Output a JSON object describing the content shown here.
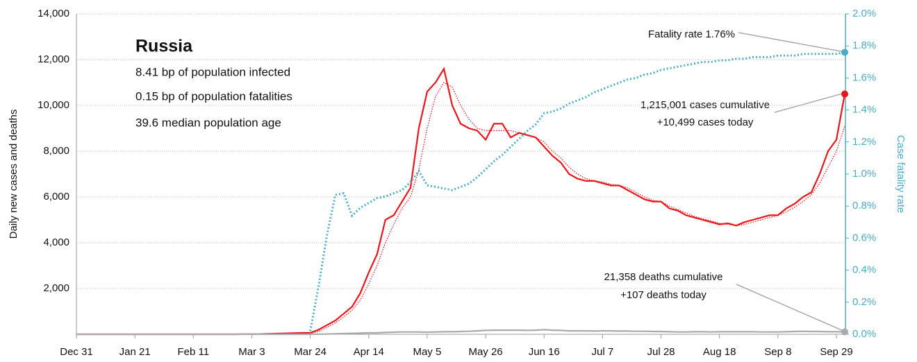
{
  "chart_data": {
    "type": "line",
    "info": {
      "title": "Russia",
      "lines": [
        "8.41 bp of population infected",
        "0.15 bp of population fatalities",
        "39.6 median population age"
      ]
    },
    "ylabel": "Daily new cases and deaths",
    "y2label": "Case fatality rate",
    "annotations": [
      "Fatality rate 1.76%",
      "1,215,001 cases cumulative",
      "+10,499 cases today",
      "21,358 deaths cumulative",
      "+107 deaths today"
    ],
    "categories": [
      "Dec 31",
      null,
      null,
      null,
      null,
      null,
      null,
      "Jan 21",
      null,
      null,
      null,
      null,
      null,
      null,
      "Feb 11",
      null,
      null,
      null,
      null,
      null,
      null,
      "Mar 3",
      null,
      null,
      null,
      null,
      null,
      null,
      "Mar 24",
      null,
      null,
      null,
      null,
      null,
      null,
      "Apr 14",
      null,
      null,
      null,
      null,
      null,
      null,
      "May 5",
      null,
      null,
      null,
      null,
      null,
      null,
      "May 26",
      null,
      null,
      null,
      null,
      null,
      null,
      "Jun 16",
      null,
      null,
      null,
      null,
      null,
      null,
      "Jul 7",
      null,
      null,
      null,
      null,
      null,
      null,
      "Jul 28",
      null,
      null,
      null,
      null,
      null,
      null,
      "Aug 18",
      null,
      null,
      null,
      null,
      null,
      null,
      "Sep 8",
      null,
      null,
      null,
      null,
      null,
      null,
      "Sep 29",
      null
    ],
    "ylim": [
      0,
      14000
    ],
    "yticks": [
      {
        "value": 2000,
        "label": "2,000"
      },
      {
        "value": 4000,
        "label": "4,000"
      },
      {
        "value": 6000,
        "label": "6,000"
      },
      {
        "value": 8000,
        "label": "8,000"
      },
      {
        "value": 10000,
        "label": "10,000"
      },
      {
        "value": 12000,
        "label": "12,000"
      },
      {
        "value": 14000,
        "label": "14,000"
      }
    ],
    "y2lim": [
      0,
      2.0
    ],
    "y2ticks": [
      {
        "value": 0,
        "label": "0.0%"
      },
      {
        "value": 0.2,
        "label": "0.2%"
      },
      {
        "value": 0.4,
        "label": "0.4%"
      },
      {
        "value": 0.6,
        "label": "0.6%"
      },
      {
        "value": 0.8,
        "label": "0.8%"
      },
      {
        "value": 1.0,
        "label": "1.0%"
      },
      {
        "value": 1.2,
        "label": "1.2%"
      },
      {
        "value": 1.4,
        "label": "1.4%"
      },
      {
        "value": 1.6,
        "label": "1.6%"
      },
      {
        "value": 1.8,
        "label": "1.8%"
      },
      {
        "value": 2.0,
        "label": "2.0%"
      }
    ],
    "grid": true,
    "series": [
      {
        "color": "#e8161b",
        "style": "solid",
        "end_marker": true,
        "values": [
          0,
          0,
          0,
          0,
          0,
          0,
          0,
          0,
          0,
          0,
          0,
          0,
          0,
          0,
          0,
          0,
          0,
          0,
          0,
          0,
          2,
          5,
          10,
          20,
          30,
          40,
          50,
          60,
          60,
          200,
          400,
          600,
          900,
          1200,
          1800,
          2700,
          3500,
          5000,
          5200,
          5800,
          6400,
          9000,
          10600,
          11000,
          11600,
          10000,
          9200,
          9000,
          8900,
          8500,
          9200,
          9200,
          8600,
          8800,
          8700,
          8600,
          8200,
          7800,
          7500,
          7000,
          6800,
          6700,
          6700,
          6600,
          6500,
          6500,
          6300,
          6100,
          5900,
          5800,
          5800,
          5500,
          5400,
          5200,
          5100,
          5000,
          4900,
          4800,
          4850,
          4750,
          4900,
          5000,
          5100,
          5200,
          5200,
          5500,
          5700,
          6000,
          6200,
          7000,
          8000,
          8500,
          10499
        ]
      },
      {
        "color": "#e8161b",
        "style": "dotted",
        "end_marker": false,
        "values": [
          0,
          0,
          0,
          0,
          0,
          0,
          0,
          0,
          0,
          0,
          0,
          0,
          0,
          0,
          0,
          0,
          0,
          0,
          0,
          0,
          1,
          3,
          7,
          14,
          22,
          30,
          38,
          45,
          40,
          120,
          300,
          500,
          750,
          1050,
          1500,
          2200,
          3000,
          4000,
          4800,
          5500,
          6000,
          7200,
          9000,
          10400,
          11000,
          10800,
          10000,
          9400,
          9000,
          8900,
          8900,
          8900,
          8900,
          8800,
          8700,
          8600,
          8400,
          8000,
          7700,
          7300,
          7000,
          6800,
          6700,
          6650,
          6550,
          6500,
          6400,
          6200,
          6000,
          5850,
          5800,
          5600,
          5450,
          5300,
          5150,
          5050,
          4950,
          4850,
          4800,
          4750,
          4800,
          4900,
          5000,
          5100,
          5200,
          5350,
          5550,
          5800,
          6100,
          6600,
          7300,
          8000,
          9100
        ]
      },
      {
        "color": "#aaaaaa",
        "style": "solid",
        "end_marker": true,
        "values": [
          0,
          0,
          0,
          0,
          0,
          0,
          0,
          0,
          0,
          0,
          0,
          0,
          0,
          0,
          0,
          0,
          0,
          0,
          0,
          0,
          0,
          0,
          0,
          0,
          0,
          0,
          0,
          0,
          0,
          5,
          10,
          20,
          30,
          40,
          50,
          60,
          60,
          80,
          90,
          100,
          100,
          100,
          90,
          100,
          110,
          110,
          120,
          130,
          150,
          170,
          180,
          180,
          180,
          180,
          170,
          180,
          200,
          180,
          170,
          150,
          150,
          150,
          140,
          150,
          150,
          140,
          140,
          130,
          130,
          120,
          120,
          110,
          100,
          100,
          110,
          110,
          100,
          110,
          110,
          110,
          110,
          110,
          100,
          100,
          100,
          110,
          120,
          130,
          120,
          120,
          110,
          110,
          107
        ]
      },
      {
        "color": "#4bacc6",
        "style": "dotted",
        "axis": "y2",
        "end_marker": true,
        "values": [
          null,
          null,
          null,
          null,
          null,
          null,
          null,
          null,
          null,
          null,
          null,
          null,
          null,
          null,
          null,
          null,
          null,
          null,
          null,
          null,
          null,
          null,
          null,
          null,
          null,
          null,
          null,
          null,
          0.02,
          0.3,
          0.62,
          0.87,
          0.88,
          0.74,
          0.79,
          0.82,
          0.85,
          0.86,
          0.88,
          0.9,
          0.95,
          1.02,
          0.93,
          0.92,
          0.91,
          0.9,
          0.92,
          0.94,
          0.98,
          1.03,
          1.08,
          1.12,
          1.17,
          1.22,
          1.27,
          1.31,
          1.38,
          1.39,
          1.41,
          1.44,
          1.46,
          1.48,
          1.51,
          1.53,
          1.55,
          1.57,
          1.59,
          1.6,
          1.62,
          1.63,
          1.65,
          1.66,
          1.67,
          1.68,
          1.69,
          1.7,
          1.7,
          1.71,
          1.71,
          1.72,
          1.72,
          1.73,
          1.73,
          1.73,
          1.74,
          1.74,
          1.74,
          1.75,
          1.75,
          1.75,
          1.75,
          1.75,
          1.76
        ]
      }
    ]
  }
}
